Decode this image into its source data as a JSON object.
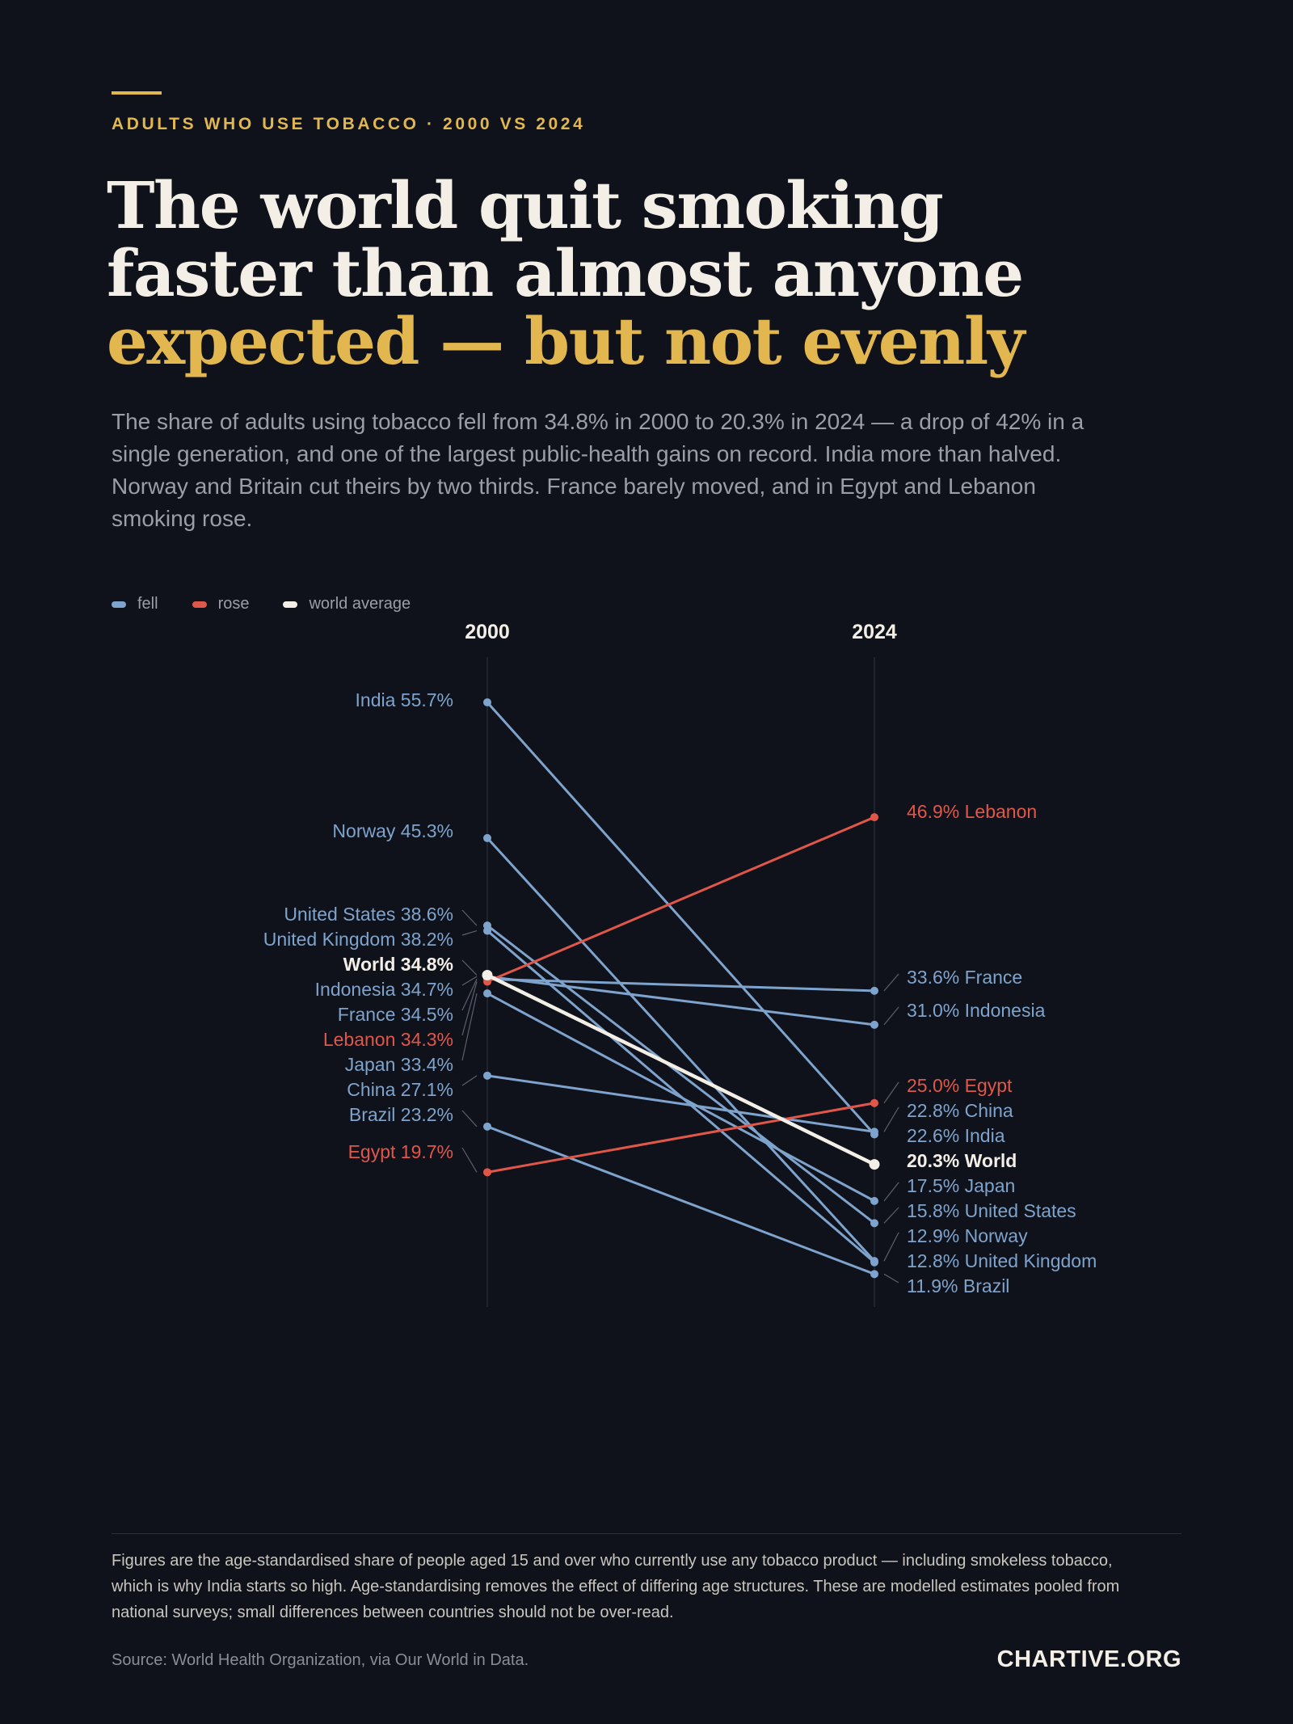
{
  "kicker": "ADULTS WHO USE TOBACCO · 2000 VS 2024",
  "headline": {
    "line1": "The world quit smoking",
    "line2": "faster than almost anyone",
    "line3_highlight": "expected — but not evenly"
  },
  "dek": "The share of adults using tobacco fell from 34.8% in 2000 to 20.3% in 2024 — a drop of 42% in a single generation, and one of the largest public-health gains on record. India more than halved. Norway and Britain cut theirs by two thirds. France barely moved, and in Egypt and Lebanon smoking rose.",
  "legend": [
    {
      "label": "fell",
      "color": "#7ea3cc"
    },
    {
      "label": "rose",
      "color": "#e0574a"
    },
    {
      "label": "world average",
      "color": "#f3efe6"
    }
  ],
  "colors": {
    "fell": "#7ea3cc",
    "rose": "#e0574a",
    "world": "#f3efe6"
  },
  "chart_data": {
    "type": "slope",
    "x": [
      "2000",
      "2024"
    ],
    "unit": "%",
    "series": [
      {
        "name": "India",
        "start": 55.7,
        "end": 22.6,
        "trend": "fell"
      },
      {
        "name": "Norway",
        "start": 45.3,
        "end": 12.9,
        "trend": "fell"
      },
      {
        "name": "United States",
        "start": 38.6,
        "end": 15.8,
        "trend": "fell"
      },
      {
        "name": "United Kingdom",
        "start": 38.2,
        "end": 12.8,
        "trend": "fell"
      },
      {
        "name": "World",
        "start": 34.8,
        "end": 20.3,
        "trend": "world"
      },
      {
        "name": "Indonesia",
        "start": 34.7,
        "end": 31.0,
        "trend": "fell"
      },
      {
        "name": "France",
        "start": 34.5,
        "end": 33.6,
        "trend": "fell"
      },
      {
        "name": "Lebanon",
        "start": 34.3,
        "end": 46.9,
        "trend": "rose"
      },
      {
        "name": "Japan",
        "start": 33.4,
        "end": 17.5,
        "trend": "fell"
      },
      {
        "name": "China",
        "start": 27.1,
        "end": 22.8,
        "trend": "fell"
      },
      {
        "name": "Brazil",
        "start": 23.2,
        "end": 11.9,
        "trend": "fell"
      },
      {
        "name": "Egypt",
        "start": 19.7,
        "end": 25.0,
        "trend": "rose"
      }
    ],
    "left_labels": [
      {
        "text": "India 55.7%",
        "name": "India"
      },
      {
        "text": "Norway 45.3%",
        "name": "Norway"
      },
      {
        "text": "United States 38.6%",
        "name": "United States"
      },
      {
        "text": "United Kingdom 38.2%",
        "name": "United Kingdom"
      },
      {
        "text": "World 34.8%",
        "name": "World"
      },
      {
        "text": "Indonesia 34.7%",
        "name": "Indonesia"
      },
      {
        "text": "France 34.5%",
        "name": "France"
      },
      {
        "text": "Lebanon 34.3%",
        "name": "Lebanon"
      },
      {
        "text": "Japan 33.4%",
        "name": "Japan"
      },
      {
        "text": "China 27.1%",
        "name": "China"
      },
      {
        "text": "Brazil 23.2%",
        "name": "Brazil"
      },
      {
        "text": "Egypt 19.7%",
        "name": "Egypt"
      }
    ],
    "right_labels": [
      {
        "text": "46.9% Lebanon",
        "name": "Lebanon"
      },
      {
        "text": "33.6% France",
        "name": "France"
      },
      {
        "text": "31.0% Indonesia",
        "name": "Indonesia"
      },
      {
        "text": "25.0% Egypt",
        "name": "Egypt"
      },
      {
        "text": "22.8% China",
        "name": "China"
      },
      {
        "text": "22.6% India",
        "name": "India"
      },
      {
        "text": "20.3% World",
        "name": "World"
      },
      {
        "text": "17.5% Japan",
        "name": "Japan"
      },
      {
        "text": "15.8% United States",
        "name": "United States"
      },
      {
        "text": "12.9% Norway",
        "name": "Norway"
      },
      {
        "text": "12.8% United Kingdom",
        "name": "United Kingdom"
      },
      {
        "text": "11.9% Brazil",
        "name": "Brazil"
      }
    ]
  },
  "footnote": "Figures are the age-standardised share of people aged 15 and over who currently use any tobacco product — including smokeless tobacco, which is why India starts so high. Age-standardising removes the effect of differing age structures. These are modelled estimates pooled from national surveys; small differences between countries should not be over-read.",
  "source": "Source: World Health Organization, via Our World in Data.",
  "brand": "CHARTIVE.ORG"
}
